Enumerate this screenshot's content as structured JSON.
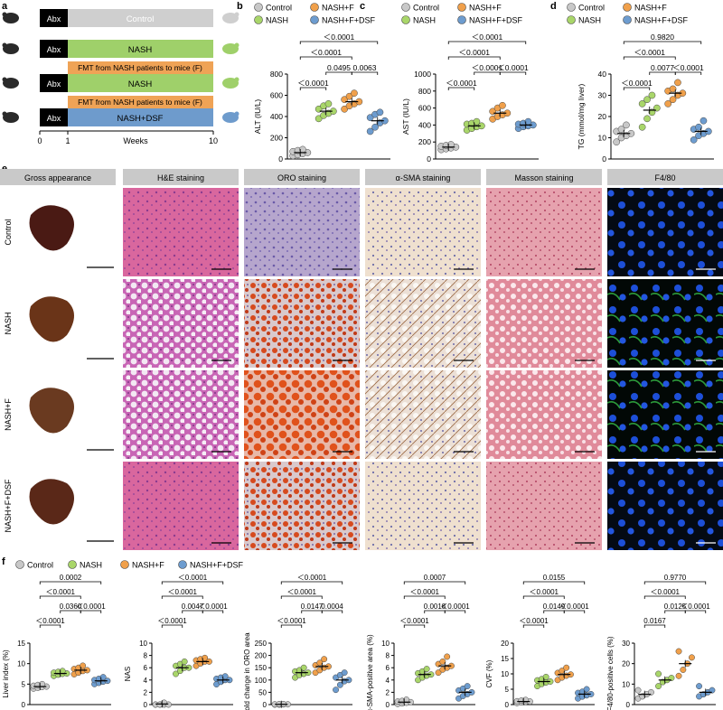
{
  "panels": {
    "a": "a",
    "b": "b",
    "c": "c",
    "d": "d",
    "e": "e",
    "f": "f"
  },
  "colors": {
    "control": "#c8c8c8",
    "nash": "#a9d66a",
    "nashf": "#f0a04b",
    "nashfdsf": "#6d9ccf",
    "control_bar": "#cfcfcf",
    "nash_bar": "#9fd06a",
    "nashf_bar": "#efa356",
    "dsf_bar": "#6e9bcc"
  },
  "schematic": {
    "abx": "Abx",
    "rows": [
      {
        "label": "Control"
      },
      {
        "label": "NASH"
      },
      {
        "label": "NASH",
        "fmt": "FMT from NASH patients to mice (F)"
      },
      {
        "label": "NASH+DSF",
        "fmt": "FMT from NASH patients to mice (F)"
      }
    ],
    "ticks": [
      "0",
      "1",
      "10"
    ],
    "xlabel": "Weeks"
  },
  "legend_top": {
    "control": "Control",
    "nashf": "NASH+F",
    "nash": "NASH",
    "nashfdsf": "NASH+F+DSF"
  },
  "legend_f": [
    "Control",
    "NASH",
    "NASH+F",
    "NASH+F+DSF"
  ],
  "histology": {
    "headers": [
      "Gross appearance",
      "H&E staining",
      "ORO staining",
      "α-SMA staining",
      "Masson staining",
      "F4/80"
    ],
    "rows": [
      "Control",
      "NASH",
      "NASH+F",
      "NASH+F+DSF"
    ]
  },
  "chart_data": [
    {
      "panel": "b",
      "type": "scatter",
      "ylabel": "ALT (IU/L)",
      "ylim": [
        0,
        800
      ],
      "yticks": [
        "0",
        "200",
        "400",
        "600",
        "800"
      ],
      "means": [
        60,
        450,
        540,
        360
      ],
      "points": [
        [
          30,
          40,
          50,
          60,
          70,
          80,
          90
        ],
        [
          380,
          410,
          430,
          450,
          470,
          500,
          520
        ],
        [
          470,
          500,
          520,
          540,
          560,
          590,
          620
        ],
        [
          260,
          300,
          340,
          360,
          390,
          420,
          440
        ]
      ],
      "brackets": [
        {
          "a": 0,
          "b": 3,
          "label": "＜0.0001"
        },
        {
          "a": 0,
          "b": 2,
          "label": "＜0.0001"
        },
        {
          "a": 1,
          "b": 2,
          "label": "0.0495"
        },
        {
          "a": 2,
          "b": 3,
          "label": "0.0063"
        },
        {
          "a": 0,
          "b": 1,
          "label": "＜0.0001"
        }
      ]
    },
    {
      "panel": "c",
      "type": "scatter",
      "ylabel": "AST (IU/L)",
      "ylim": [
        0,
        1000
      ],
      "yticks": [
        "0",
        "200",
        "400",
        "600",
        "800",
        "1000"
      ],
      "means": [
        140,
        390,
        540,
        400
      ],
      "points": [
        [
          110,
          120,
          130,
          140,
          150,
          160,
          170
        ],
        [
          340,
          360,
          380,
          390,
          410,
          420,
          440
        ],
        [
          470,
          500,
          520,
          540,
          560,
          600,
          630
        ],
        [
          360,
          380,
          390,
          400,
          410,
          420,
          440
        ]
      ],
      "brackets": [
        {
          "a": 0,
          "b": 3,
          "label": "＜0.0001"
        },
        {
          "a": 0,
          "b": 2,
          "label": "＜0.0001"
        },
        {
          "a": 1,
          "b": 2,
          "label": "＜0.0001"
        },
        {
          "a": 2,
          "b": 3,
          "label": "＜0.0001"
        },
        {
          "a": 0,
          "b": 1,
          "label": "＜0.0001"
        }
      ]
    },
    {
      "panel": "d",
      "type": "scatter",
      "ylabel": "TG (mmol/mg liver)",
      "ylim": [
        0,
        40
      ],
      "yticks": [
        "0",
        "10",
        "20",
        "30",
        "40"
      ],
      "means": [
        12,
        23,
        31,
        13
      ],
      "points": [
        [
          8,
          10,
          11,
          12,
          13,
          14,
          16
        ],
        [
          15,
          19,
          22,
          24,
          26,
          28,
          30
        ],
        [
          26,
          28,
          30,
          31,
          32,
          33,
          36
        ],
        [
          9,
          11,
          12,
          13,
          14,
          15,
          18
        ]
      ],
      "brackets": [
        {
          "a": 0,
          "b": 3,
          "label": "0.9820"
        },
        {
          "a": 0,
          "b": 2,
          "label": "＜0.0001"
        },
        {
          "a": 1,
          "b": 2,
          "label": "0.0077"
        },
        {
          "a": 2,
          "b": 3,
          "label": "＜0.0001"
        },
        {
          "a": 0,
          "b": 1,
          "label": "＜0.0001"
        }
      ]
    },
    {
      "panel": "f1",
      "type": "scatter",
      "ylabel": "Liver index (%)",
      "ylim": [
        0,
        15
      ],
      "yticks": [
        "0",
        "5",
        "10",
        "15"
      ],
      "means": [
        4.4,
        7.6,
        8.4,
        5.8
      ],
      "points": [
        [
          3.9,
          4.1,
          4.3,
          4.4,
          4.6,
          4.8,
          5.0
        ],
        [
          7.0,
          7.3,
          7.5,
          7.6,
          7.8,
          8.0,
          8.2
        ],
        [
          7.4,
          7.8,
          8.2,
          8.4,
          8.7,
          9.0,
          9.5
        ],
        [
          5.0,
          5.3,
          5.6,
          5.8,
          6.0,
          6.3,
          6.7
        ]
      ],
      "brackets": [
        {
          "a": 0,
          "b": 3,
          "label": "0.0002"
        },
        {
          "a": 0,
          "b": 2,
          "label": "＜0.0001"
        },
        {
          "a": 1,
          "b": 2,
          "label": "0.0360"
        },
        {
          "a": 2,
          "b": 3,
          "label": "＜0.0001"
        },
        {
          "a": 0,
          "b": 1,
          "label": "＜0.0001"
        }
      ]
    },
    {
      "panel": "f2",
      "type": "scatter",
      "ylabel": "NAS",
      "ylim": [
        0,
        10
      ],
      "yticks": [
        "0",
        "2",
        "4",
        "6",
        "8",
        "10"
      ],
      "means": [
        0.1,
        6.0,
        7.0,
        4.0
      ],
      "points": [
        [
          0,
          0,
          0,
          0,
          0,
          0,
          0.3
        ],
        [
          5.0,
          5.5,
          6.0,
          6.0,
          6.3,
          6.6,
          7.0
        ],
        [
          6.3,
          6.7,
          7.0,
          7.0,
          7.2,
          7.4,
          7.6
        ],
        [
          3.3,
          3.7,
          4.0,
          4.0,
          4.2,
          4.4,
          4.6
        ]
      ],
      "brackets": [
        {
          "a": 0,
          "b": 3,
          "label": "＜0.0001"
        },
        {
          "a": 0,
          "b": 2,
          "label": "＜0.0001"
        },
        {
          "a": 1,
          "b": 2,
          "label": "0.0047"
        },
        {
          "a": 2,
          "b": 3,
          "label": "＜0.0001"
        },
        {
          "a": 0,
          "b": 1,
          "label": "＜0.0001"
        }
      ]
    },
    {
      "panel": "f3",
      "type": "scatter",
      "ylabel": "Fold change in ORO area",
      "ylim": [
        0,
        250
      ],
      "yticks": [
        "0",
        "50",
        "100",
        "150",
        "200",
        "250"
      ],
      "means": [
        1,
        130,
        155,
        100
      ],
      "points": [
        [
          0,
          0,
          1,
          1,
          1,
          2,
          2
        ],
        [
          110,
          120,
          125,
          130,
          135,
          140,
          150
        ],
        [
          130,
          140,
          150,
          155,
          160,
          170,
          185
        ],
        [
          60,
          80,
          95,
          100,
          110,
          120,
          130
        ]
      ],
      "brackets": [
        {
          "a": 0,
          "b": 3,
          "label": "＜0.0001"
        },
        {
          "a": 0,
          "b": 2,
          "label": "＜0.0001"
        },
        {
          "a": 1,
          "b": 2,
          "label": "0.0147"
        },
        {
          "a": 2,
          "b": 3,
          "label": "0.0004"
        },
        {
          "a": 0,
          "b": 1,
          "label": "＜0.0001"
        }
      ]
    },
    {
      "panel": "f4",
      "type": "scatter",
      "ylabel": "α-SMA-positive area (%)",
      "ylim": [
        0,
        10
      ],
      "yticks": [
        "0",
        "2",
        "4",
        "6",
        "8",
        "10"
      ],
      "means": [
        0.4,
        4.9,
        6.3,
        2.0
      ],
      "points": [
        [
          0.1,
          0.2,
          0.3,
          0.4,
          0.5,
          0.6,
          0.8
        ],
        [
          4.0,
          4.4,
          4.7,
          4.9,
          5.1,
          5.4,
          5.8
        ],
        [
          5.2,
          5.7,
          6.0,
          6.3,
          6.6,
          7.0,
          7.8
        ],
        [
          1.0,
          1.4,
          1.7,
          2.0,
          2.3,
          2.6,
          3.0
        ]
      ],
      "brackets": [
        {
          "a": 0,
          "b": 3,
          "label": "0.0007"
        },
        {
          "a": 0,
          "b": 2,
          "label": "＜0.0001"
        },
        {
          "a": 1,
          "b": 2,
          "label": "0.0018"
        },
        {
          "a": 2,
          "b": 3,
          "label": "＜0.0001"
        },
        {
          "a": 0,
          "b": 1,
          "label": "＜0.0001"
        }
      ]
    },
    {
      "panel": "f5",
      "type": "scatter",
      "ylabel": "CVF (%)",
      "ylim": [
        0,
        20
      ],
      "yticks": [
        "0",
        "5",
        "10",
        "15",
        "20"
      ],
      "means": [
        1.0,
        7.5,
        9.8,
        3.4
      ],
      "points": [
        [
          0.5,
          0.7,
          0.9,
          1.0,
          1.1,
          1.3,
          1.5
        ],
        [
          6.0,
          6.7,
          7.2,
          7.5,
          7.9,
          8.3,
          9.0
        ],
        [
          8.0,
          8.8,
          9.4,
          9.8,
          10.3,
          11.0,
          12.0
        ],
        [
          2.0,
          2.6,
          3.0,
          3.4,
          3.8,
          4.2,
          5.0
        ]
      ],
      "brackets": [
        {
          "a": 0,
          "b": 3,
          "label": "0.0155"
        },
        {
          "a": 0,
          "b": 2,
          "label": "＜0.0001"
        },
        {
          "a": 1,
          "b": 2,
          "label": "0.0149"
        },
        {
          "a": 2,
          "b": 3,
          "label": "＜0.0001"
        },
        {
          "a": 0,
          "b": 1,
          "label": "＜0.0001"
        }
      ]
    },
    {
      "panel": "f6",
      "type": "scatter",
      "ylabel": "F4/80-positive cells (%)",
      "ylim": [
        0,
        30
      ],
      "yticks": [
        "0",
        "10",
        "20",
        "30"
      ],
      "means": [
        5,
        12,
        20,
        6
      ],
      "points": [
        [
          3,
          4,
          5,
          6,
          7
        ],
        [
          9,
          11,
          12,
          13,
          15
        ],
        [
          14,
          17,
          20,
          23,
          26
        ],
        [
          4,
          5,
          6,
          7,
          9
        ]
      ],
      "brackets": [
        {
          "a": 0,
          "b": 3,
          "label": "0.9770"
        },
        {
          "a": 0,
          "b": 2,
          "label": "＜0.0001"
        },
        {
          "a": 1,
          "b": 2,
          "label": "0.0125"
        },
        {
          "a": 2,
          "b": 3,
          "label": "＜0.0001"
        },
        {
          "a": 0,
          "b": 1,
          "label": "0.0167"
        }
      ]
    }
  ]
}
